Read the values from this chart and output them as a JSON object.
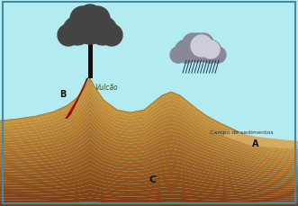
{
  "bg_color": "#b3ecf0",
  "border_color": "#4488aa",
  "ground_color_top": "#c8923a",
  "ground_color_bottom": "#7a3810",
  "sediment_color": "#d4aa60",
  "lava_color": "#991100",
  "smoke_color": "#444444",
  "smoke_color2": "#555555",
  "rain_cloud_dark": "#888899",
  "rain_cloud_light": "#ccccdd",
  "rain_color": "#223355",
  "volcano_label": "Vulcão",
  "label_B": "B",
  "label_C": "C",
  "label_A": "A",
  "label_campos": "Campo de sedimentos",
  "label_fontsize": 6
}
